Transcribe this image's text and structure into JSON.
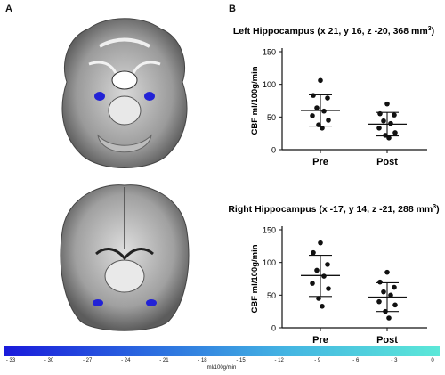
{
  "panels": {
    "a": "A",
    "b": "B"
  },
  "colorbar": {
    "ticks": [
      "- 33",
      "- 30",
      "- 27",
      "- 24",
      "- 21",
      "- 18",
      "- 15",
      "- 12",
      "- 9",
      "- 6",
      "- 3",
      "0"
    ],
    "unit": "ml/100g/min"
  },
  "colors": {
    "highlight": "#2222d6",
    "point": "#111111"
  },
  "chart_data": [
    {
      "type": "scatter",
      "title": "Left Hippocampus (x 21, y 16, z -20, 368 mm",
      "title_sup": "3",
      "title_close": ")",
      "ylabel": "CBF ml/100g/min",
      "ylim": [
        0,
        150
      ],
      "yticks": [
        "0",
        "50",
        "100",
        "150"
      ],
      "categories": [
        "Pre",
        "Post"
      ],
      "series": [
        {
          "values": [
            106,
            83,
            79,
            64,
            59,
            52,
            45,
            38,
            33
          ],
          "mean": 60,
          "sd_upper": 84,
          "sd_lower": 36
        },
        {
          "values": [
            70,
            55,
            53,
            44,
            40,
            33,
            26,
            22,
            18
          ],
          "mean": 39,
          "sd_upper": 57,
          "sd_lower": 21
        }
      ]
    },
    {
      "type": "scatter",
      "title": "Right Hippocampus (x -17, y 14, z -21, 288 mm",
      "title_sup": "3",
      "title_close": ")",
      "ylabel": "CBF ml/100g/min",
      "ylim": [
        0,
        150
      ],
      "yticks": [
        "0",
        "50",
        "100",
        "150"
      ],
      "categories": [
        "Pre",
        "Post"
      ],
      "series": [
        {
          "values": [
            130,
            115,
            97,
            88,
            79,
            68,
            60,
            45,
            33
          ],
          "mean": 80,
          "sd_upper": 111,
          "sd_lower": 48
        },
        {
          "values": [
            85,
            70,
            62,
            55,
            50,
            40,
            35,
            25,
            15
          ],
          "mean": 47,
          "sd_upper": 69,
          "sd_lower": 25
        }
      ]
    }
  ]
}
